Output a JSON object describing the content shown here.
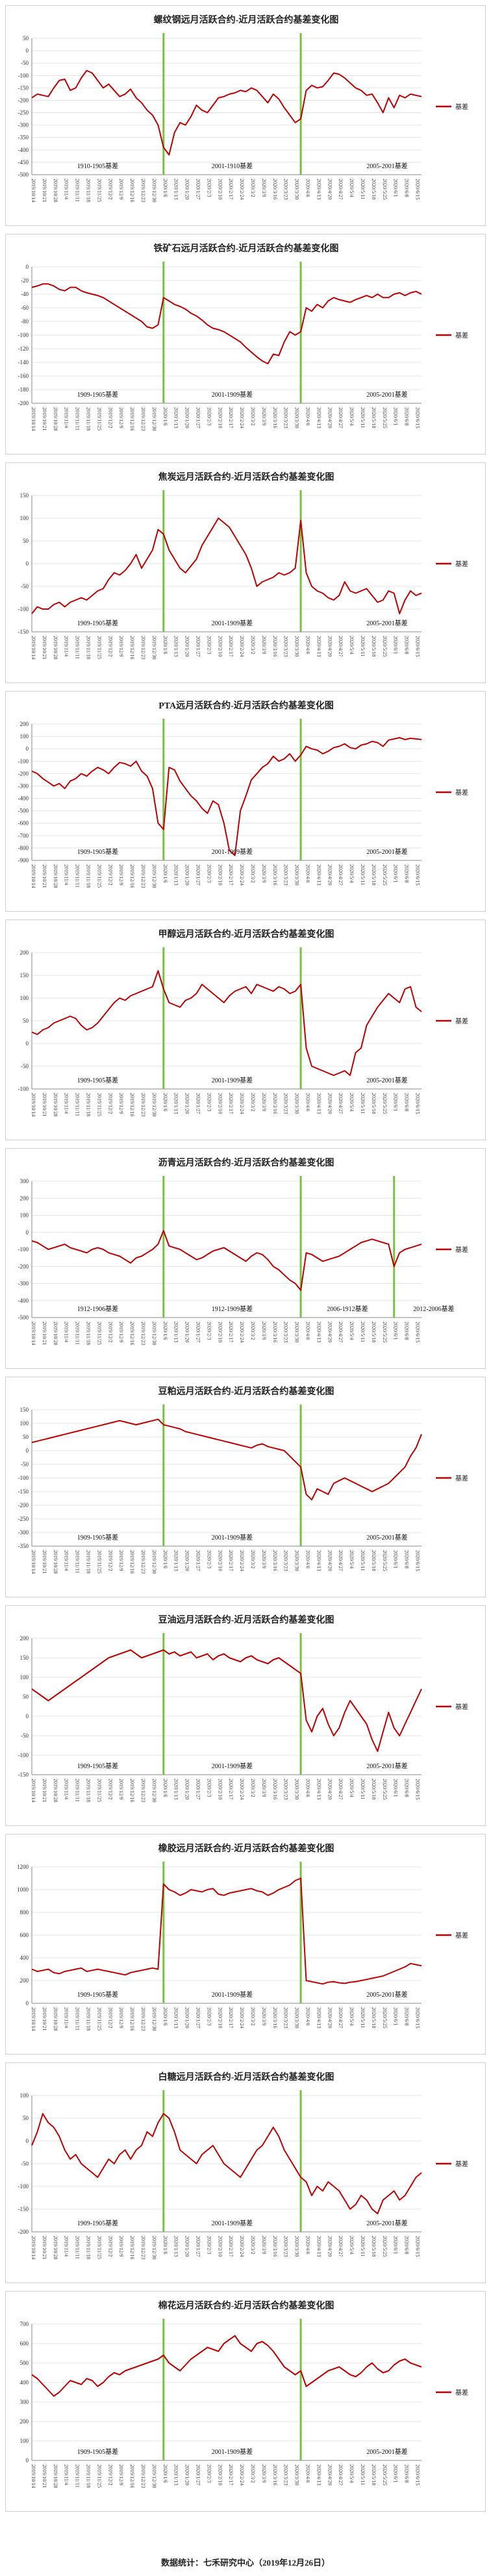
{
  "footer": "数据统计：七禾研究中心（2019年12月26日）",
  "chart_data": [
    {
      "type": "line",
      "title": "螺纹钢远月活跃合约-近月活跃合约基差变化图",
      "ylim": [
        -500,
        50
      ],
      "yticks": [
        50,
        0,
        -50,
        -100,
        -150,
        -200,
        -250,
        -300,
        -350,
        -400,
        -450,
        -500
      ],
      "series": [
        {
          "name": "基差",
          "values": [
            -190,
            -175,
            -180,
            -185,
            -150,
            -120,
            -115,
            -160,
            -150,
            -110,
            -80,
            -90,
            -120,
            -150,
            -135,
            -160,
            -185,
            -175,
            -155,
            -190,
            -210,
            -240,
            -260,
            -300,
            -390,
            -420,
            -330,
            -290,
            -300,
            -265,
            -220,
            -240,
            -250,
            -220,
            -190,
            -185,
            -175,
            -170,
            -160,
            -165,
            -150,
            -160,
            -185,
            -210,
            -175,
            -195,
            -230,
            -260,
            -290,
            -275,
            -160,
            -140,
            -150,
            -145,
            -120,
            -90,
            -95,
            -110,
            -130,
            -150,
            -160,
            -180,
            -175,
            -210,
            -250,
            -190,
            -230,
            -180,
            -190,
            -175,
            -180,
            -185
          ]
        }
      ],
      "contracts": [
        "1910-1905基差",
        "2001-1910基差",
        "2005-2001基差"
      ],
      "rollovers": [
        24,
        49
      ]
    },
    {
      "type": "line",
      "title": "铁矿石远月活跃合约-近月活跃合约基差变化图",
      "ylim": [
        -200,
        0
      ],
      "yticks": [
        0,
        -20,
        -40,
        -60,
        -80,
        -100,
        -120,
        -140,
        -160,
        -180,
        -200
      ],
      "series": [
        {
          "name": "基差",
          "values": [
            -30,
            -28,
            -25,
            -25,
            -28,
            -33,
            -35,
            -30,
            -30,
            -35,
            -38,
            -40,
            -42,
            -45,
            -50,
            -55,
            -60,
            -65,
            -70,
            -75,
            -80,
            -88,
            -90,
            -85,
            -45,
            -50,
            -55,
            -58,
            -62,
            -68,
            -72,
            -78,
            -85,
            -90,
            -92,
            -95,
            -100,
            -105,
            -110,
            -118,
            -125,
            -132,
            -138,
            -142,
            -128,
            -130,
            -110,
            -95,
            -100,
            -95,
            -60,
            -65,
            -55,
            -60,
            -50,
            -45,
            -48,
            -50,
            -52,
            -48,
            -45,
            -42,
            -45,
            -40,
            -45,
            -45,
            -40,
            -38,
            -42,
            -38,
            -36,
            -40
          ]
        }
      ],
      "contracts": [
        "1909-1905基差",
        "2001-1909基差",
        "2005-2001基差"
      ],
      "rollovers": [
        24,
        49
      ]
    },
    {
      "type": "line",
      "title": "焦炭远月活跃合约-近月活跃合约基差变化图",
      "ylim": [
        -150,
        150
      ],
      "yticks": [
        150,
        100,
        50,
        0,
        -50,
        -100,
        -150
      ],
      "series": [
        {
          "name": "基差",
          "values": [
            -110,
            -95,
            -100,
            -100,
            -90,
            -85,
            -95,
            -85,
            -80,
            -75,
            -80,
            -70,
            -60,
            -55,
            -35,
            -20,
            -25,
            -15,
            0,
            20,
            -10,
            10,
            30,
            75,
            65,
            30,
            10,
            -10,
            -20,
            -5,
            10,
            40,
            60,
            80,
            100,
            90,
            80,
            60,
            40,
            20,
            -10,
            -50,
            -40,
            -35,
            -30,
            -20,
            -25,
            -20,
            -10,
            95,
            -20,
            -50,
            -60,
            -65,
            -75,
            -80,
            -70,
            -40,
            -60,
            -65,
            -60,
            -55,
            -70,
            -85,
            -80,
            -60,
            -65,
            -110,
            -80,
            -60,
            -70,
            -65
          ]
        }
      ],
      "contracts": [
        "1909-1905基差",
        "2001-1909基差",
        "2005-2001基差"
      ],
      "rollovers": [
        24,
        49
      ]
    },
    {
      "type": "line",
      "title": "PTA远月活跃合约-近月活跃合约基差变化图",
      "ylim": [
        -900,
        200
      ],
      "yticks": [
        200,
        100,
        0,
        -100,
        -200,
        -300,
        -400,
        -500,
        -600,
        -700,
        -800,
        -900
      ],
      "series": [
        {
          "name": "基差",
          "values": [
            -180,
            -200,
            -240,
            -270,
            -300,
            -280,
            -320,
            -260,
            -240,
            -200,
            -220,
            -180,
            -150,
            -170,
            -200,
            -150,
            -110,
            -120,
            -140,
            -100,
            -180,
            -220,
            -320,
            -600,
            -650,
            -150,
            -170,
            -260,
            -320,
            -380,
            -420,
            -480,
            -520,
            -420,
            -450,
            -600,
            -820,
            -860,
            -500,
            -380,
            -250,
            -200,
            -150,
            -120,
            -60,
            -100,
            -80,
            -40,
            -100,
            -50,
            20,
            0,
            -10,
            -40,
            -20,
            10,
            20,
            40,
            10,
            0,
            30,
            40,
            60,
            50,
            20,
            70,
            80,
            90,
            75,
            85,
            80,
            75
          ]
        }
      ],
      "contracts": [
        "1909-1905基差",
        "2001-1909基差",
        "2005-2001基差"
      ],
      "rollovers": [
        24,
        49
      ]
    },
    {
      "type": "line",
      "title": "甲醇远月活跃合约-近月活跃合约基差变化图",
      "ylim": [
        -100,
        200
      ],
      "yticks": [
        200,
        150,
        100,
        50,
        0,
        -50,
        -100
      ],
      "series": [
        {
          "name": "基差",
          "values": [
            25,
            20,
            30,
            35,
            45,
            50,
            55,
            60,
            55,
            40,
            30,
            35,
            45,
            60,
            75,
            90,
            100,
            95,
            105,
            110,
            115,
            120,
            125,
            160,
            120,
            90,
            85,
            80,
            95,
            100,
            110,
            130,
            120,
            110,
            100,
            90,
            105,
            115,
            120,
            125,
            110,
            130,
            125,
            120,
            115,
            125,
            120,
            110,
            115,
            130,
            -10,
            -50,
            -55,
            -60,
            -65,
            -70,
            -65,
            -60,
            -70,
            -20,
            -10,
            40,
            60,
            80,
            95,
            110,
            100,
            90,
            120,
            125,
            80,
            70
          ]
        }
      ],
      "contracts": [
        "1909-1905基差",
        "2001-1909基差",
        "2005-2001基差"
      ],
      "rollovers": [
        24,
        49
      ]
    },
    {
      "type": "line",
      "title": "沥青远月活跃合约-近月活跃合约基差变化图",
      "ylim": [
        -500,
        300
      ],
      "yticks": [
        300,
        200,
        100,
        0,
        -100,
        -200,
        -300,
        -400,
        -500
      ],
      "series": [
        {
          "name": "基差",
          "values": [
            -50,
            -60,
            -80,
            -100,
            -90,
            -80,
            -70,
            -90,
            -100,
            -110,
            -120,
            -100,
            -90,
            -100,
            -120,
            -130,
            -140,
            -160,
            -180,
            -150,
            -140,
            -120,
            -100,
            -70,
            10,
            -80,
            -90,
            -100,
            -120,
            -140,
            -160,
            -150,
            -130,
            -110,
            -100,
            -90,
            -110,
            -130,
            -150,
            -170,
            -140,
            -120,
            -130,
            -160,
            -200,
            -220,
            -250,
            -280,
            -300,
            -340,
            -120,
            -130,
            -150,
            -170,
            -160,
            -150,
            -140,
            -120,
            -100,
            -80,
            -60,
            -50,
            -40,
            -50,
            -60,
            -70,
            -200,
            -120,
            -100,
            -90,
            -80,
            -70
          ]
        }
      ],
      "contracts": [
        "1912-1906基差",
        "1912-1909基差",
        "2006-1912基差",
        "2012-2006基差"
      ],
      "rollovers": [
        24,
        49,
        66
      ]
    },
    {
      "type": "line",
      "title": "豆粕远月活跃合约-近月活跃合约基差变化图",
      "ylim": [
        -350,
        150
      ],
      "yticks": [
        150,
        100,
        50,
        0,
        -50,
        -100,
        -150,
        -200,
        -250,
        -300,
        -350
      ],
      "series": [
        {
          "name": "基差",
          "values": [
            30,
            35,
            40,
            45,
            50,
            55,
            60,
            65,
            70,
            75,
            80,
            85,
            90,
            95,
            100,
            105,
            110,
            105,
            100,
            95,
            100,
            105,
            110,
            115,
            95,
            90,
            85,
            80,
            70,
            65,
            60,
            55,
            50,
            45,
            40,
            35,
            30,
            25,
            20,
            15,
            10,
            20,
            25,
            15,
            10,
            5,
            0,
            -20,
            -40,
            -60,
            -160,
            -180,
            -140,
            -150,
            -160,
            -120,
            -110,
            -100,
            -110,
            -120,
            -130,
            -140,
            -150,
            -140,
            -130,
            -120,
            -100,
            -80,
            -60,
            -20,
            10,
            60
          ]
        }
      ],
      "contracts": [
        "1909-1905基差",
        "2001-1909基差",
        "2005-2001基差"
      ],
      "rollovers": [
        24,
        49
      ]
    },
    {
      "type": "line",
      "title": "豆油远月活跃合约-近月活跃合约基差变化图",
      "ylim": [
        -150,
        200
      ],
      "yticks": [
        200,
        150,
        100,
        50,
        0,
        -50,
        -100,
        -150
      ],
      "series": [
        {
          "name": "基差",
          "values": [
            70,
            60,
            50,
            40,
            50,
            60,
            70,
            80,
            90,
            100,
            110,
            120,
            130,
            140,
            150,
            155,
            160,
            165,
            170,
            160,
            150,
            155,
            160,
            165,
            170,
            160,
            165,
            155,
            160,
            165,
            150,
            155,
            160,
            145,
            155,
            160,
            150,
            145,
            140,
            150,
            155,
            145,
            140,
            135,
            145,
            150,
            140,
            130,
            120,
            110,
            -10,
            -40,
            0,
            20,
            -20,
            -50,
            -30,
            10,
            40,
            20,
            0,
            -20,
            -60,
            -90,
            -40,
            10,
            -30,
            -50,
            -20,
            10,
            40,
            70
          ]
        }
      ],
      "contracts": [
        "1909-1905基差",
        "2001-1909基差",
        "2005-2001基差"
      ],
      "rollovers": [
        24,
        49
      ]
    },
    {
      "type": "line",
      "title": "橡胶远月活跃合约-近月活跃合约基差变化图",
      "ylim": [
        0,
        1200
      ],
      "yticks": [
        1200,
        1000,
        800,
        600,
        400,
        200,
        0
      ],
      "series": [
        {
          "name": "基差",
          "values": [
            300,
            280,
            290,
            300,
            270,
            260,
            280,
            290,
            300,
            310,
            280,
            290,
            300,
            290,
            280,
            270,
            260,
            250,
            270,
            280,
            290,
            300,
            310,
            300,
            1050,
            1000,
            980,
            950,
            970,
            1000,
            990,
            980,
            1000,
            1010,
            960,
            950,
            970,
            980,
            990,
            1000,
            1010,
            990,
            980,
            950,
            970,
            1000,
            1020,
            1040,
            1080,
            1100,
            200,
            190,
            180,
            170,
            185,
            190,
            180,
            175,
            185,
            190,
            200,
            210,
            220,
            230,
            240,
            260,
            280,
            300,
            320,
            350,
            340,
            330
          ]
        }
      ],
      "contracts": [
        "1909-1905基差",
        "2001-1909基差",
        "2005-2001基差"
      ],
      "rollovers": [
        24,
        49
      ]
    },
    {
      "type": "line",
      "title": "白糖远月活跃合约-近月活跃合约基差变化图",
      "ylim": [
        -200,
        100
      ],
      "yticks": [
        100,
        50,
        0,
        -50,
        -100,
        -150,
        -200
      ],
      "series": [
        {
          "name": "基差",
          "values": [
            -10,
            20,
            60,
            40,
            30,
            10,
            -20,
            -40,
            -30,
            -50,
            -60,
            -70,
            -80,
            -60,
            -40,
            -50,
            -30,
            -20,
            -40,
            -20,
            -10,
            20,
            10,
            40,
            60,
            50,
            20,
            -20,
            -30,
            -40,
            -50,
            -30,
            -20,
            -10,
            -30,
            -50,
            -60,
            -70,
            -80,
            -60,
            -40,
            -20,
            -10,
            10,
            30,
            10,
            -20,
            -40,
            -60,
            -80,
            -90,
            -120,
            -100,
            -110,
            -90,
            -100,
            -110,
            -130,
            -150,
            -140,
            -120,
            -130,
            -150,
            -160,
            -130,
            -120,
            -110,
            -130,
            -120,
            -100,
            -80,
            -70
          ]
        }
      ],
      "contracts": [
        "1909-1905基差",
        "2001-1909基差",
        "2005-2001基差"
      ],
      "rollovers": [
        24,
        49
      ]
    },
    {
      "type": "line",
      "title": "棉花远月活跃合约-近月活跃合约基差变化图",
      "ylim": [
        0,
        700
      ],
      "yticks": [
        700,
        600,
        500,
        400,
        300,
        200,
        100,
        0
      ],
      "series": [
        {
          "name": "基差",
          "values": [
            440,
            420,
            390,
            360,
            330,
            350,
            380,
            410,
            400,
            390,
            420,
            410,
            380,
            400,
            430,
            450,
            440,
            460,
            470,
            480,
            490,
            500,
            510,
            520,
            540,
            500,
            480,
            460,
            490,
            520,
            540,
            560,
            580,
            570,
            560,
            600,
            620,
            640,
            600,
            580,
            560,
            600,
            610,
            590,
            560,
            520,
            480,
            460,
            440,
            460,
            380,
            400,
            420,
            440,
            460,
            470,
            480,
            460,
            440,
            430,
            450,
            480,
            500,
            470,
            450,
            460,
            490,
            510,
            520,
            500,
            490,
            480
          ]
        }
      ],
      "contracts": [
        "1909-1905基差",
        "2001-1909基差",
        "2005-2001基差"
      ],
      "rollovers": [
        24,
        49
      ]
    }
  ]
}
